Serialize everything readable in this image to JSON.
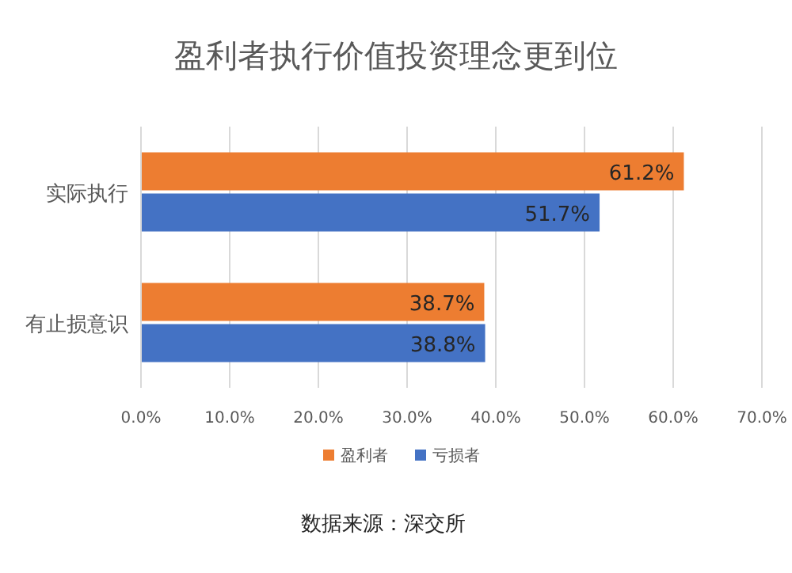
{
  "chart_data": {
    "type": "bar",
    "orientation": "horizontal",
    "title": "盈利者执行价值投资理念更到位",
    "categories": [
      "实际执行",
      "有止损意识"
    ],
    "series": [
      {
        "name": "盈利者",
        "color": "#ed7d31",
        "values": [
          61.2,
          38.7
        ],
        "value_labels": [
          "61.2%",
          "38.7%"
        ]
      },
      {
        "name": "亏损者",
        "color": "#4472c4",
        "values": [
          51.7,
          38.8
        ],
        "value_labels": [
          "51.7%",
          "38.8%"
        ]
      }
    ],
    "xlim": [
      0,
      70
    ],
    "xticks": [
      {
        "value": 0,
        "label": "0.0%"
      },
      {
        "value": 10,
        "label": "10.0%"
      },
      {
        "value": 20,
        "label": "20.0%"
      },
      {
        "value": 30,
        "label": "30.0%"
      },
      {
        "value": 40,
        "label": "40.0%"
      },
      {
        "value": 50,
        "label": "50.0%"
      },
      {
        "value": 60,
        "label": "60.0%"
      },
      {
        "value": 70,
        "label": "70.0%"
      }
    ],
    "grid": "x",
    "legend": "bottom",
    "annotations": [
      "数据来源：深交所"
    ]
  }
}
